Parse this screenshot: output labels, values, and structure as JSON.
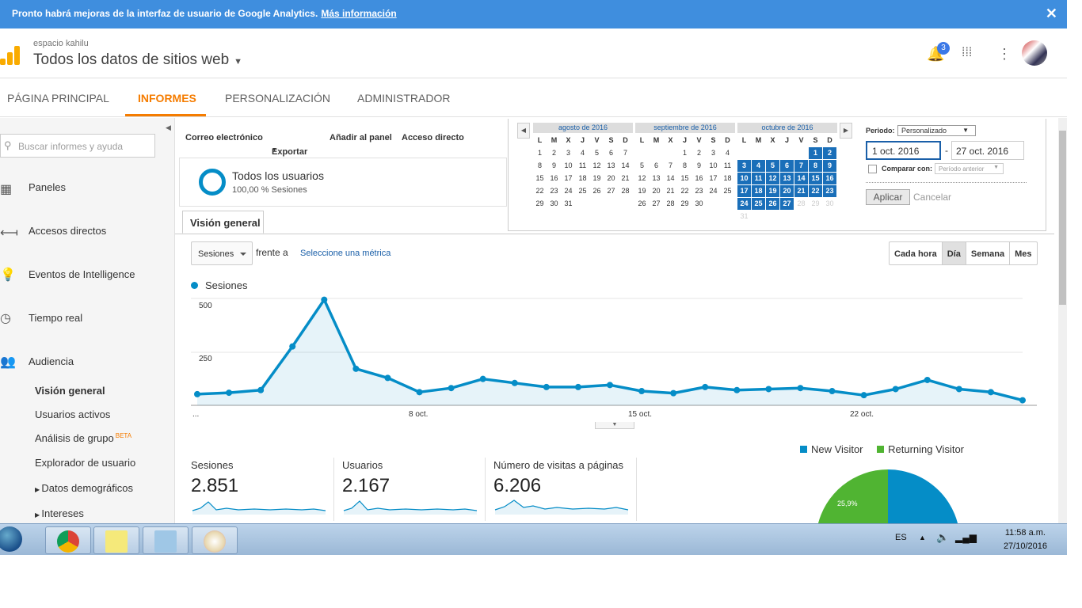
{
  "banner": {
    "text": "Pronto habrá mejoras de la interfaz de usuario de Google Analytics.",
    "link": "Más información",
    "close": "✕"
  },
  "header": {
    "account": "espacio kahilu",
    "property": "Todos los datos de sitios web",
    "notifications": "3"
  },
  "nav": {
    "tabs": [
      "PÁGINA PRINCIPAL",
      "INFORMES",
      "PERSONALIZACIÓN",
      "ADMINISTRADOR"
    ],
    "active": "INFORMES"
  },
  "sidebar": {
    "search_placeholder": "Buscar informes y ayuda",
    "items": [
      "Paneles",
      "Accesos directos",
      "Eventos de Intelligence",
      "Tiempo real",
      "Audiencia"
    ],
    "sub": [
      "Visión general",
      "Usuarios activos",
      "Análisis de grupo",
      "Explorador de usuario",
      "Datos demográficos",
      "Intereses"
    ],
    "beta": "BETA"
  },
  "toolbar": {
    "email": "Correo electrónico",
    "export": "Exportar",
    "add": "Añadir al panel",
    "shortcut": "Acceso directo"
  },
  "segment": {
    "name": "Todos los usuarios",
    "sub": "100,00 % Sesiones"
  },
  "view_tab": "Visión general",
  "metric": {
    "selected": "Sesiones",
    "vs": "frente a",
    "select": "Seleccione una métrica"
  },
  "granularity": [
    "Cada hora",
    "Día",
    "Semana",
    "Mes"
  ],
  "granularity_active": "Día",
  "calendar": {
    "months": [
      "agosto de 2016",
      "septiembre de 2016",
      "octubre de 2016"
    ],
    "weekdays": [
      "L",
      "M",
      "X",
      "J",
      "V",
      "S",
      "D"
    ],
    "period_label": "Periodo:",
    "period_value": "Personalizado",
    "start": "1 oct. 2016",
    "end": "27 oct. 2016",
    "compare_label": "Comparar con:",
    "compare_value": "Período anterior",
    "apply": "Aplicar",
    "cancel": "Cancelar"
  },
  "chart_data": {
    "type": "line",
    "series": [
      {
        "name": "Sesiones",
        "values": [
          55,
          62,
          75,
          290,
          520,
          180,
          135,
          65,
          85,
          130,
          110,
          90,
          90,
          100,
          70,
          60,
          90,
          75,
          80,
          85,
          70,
          50,
          80,
          125,
          80,
          65,
          25
        ]
      }
    ],
    "x": [
      1,
      2,
      3,
      4,
      5,
      6,
      7,
      8,
      9,
      10,
      11,
      12,
      13,
      14,
      15,
      16,
      17,
      18,
      19,
      20,
      21,
      22,
      23,
      24,
      25,
      26,
      27
    ],
    "xticks": [
      "...",
      "8 oct.",
      "15 oct.",
      "22 oct."
    ],
    "yticks": [
      "500",
      "250"
    ],
    "ylim": [
      0,
      550
    ],
    "grid": true,
    "color": "#058dc7"
  },
  "stats": [
    {
      "label": "Sesiones",
      "value": "2.851"
    },
    {
      "label": "Usuarios",
      "value": "2.167"
    },
    {
      "label": "Número de visitas a páginas",
      "value": "6.206"
    }
  ],
  "pie": {
    "legend": [
      "New Visitor",
      "Returning Visitor"
    ],
    "colors": [
      "#058dc7",
      "#50b432"
    ],
    "returning_label": "25,9%",
    "values": [
      74.1,
      25.9
    ]
  },
  "taskbar": {
    "lang": "ES",
    "time": "11:58 a.m.",
    "date": "27/10/2016"
  }
}
